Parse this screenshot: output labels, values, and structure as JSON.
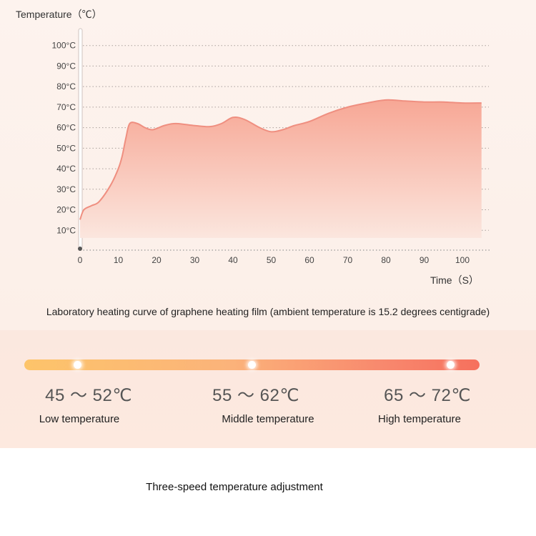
{
  "chart_data": {
    "type": "area",
    "ylabel": "Temperature（℃）",
    "xlabel": "Time（S）",
    "xlim": [
      0,
      105
    ],
    "ylim": [
      0,
      100
    ],
    "x_ticks": [
      0,
      10,
      20,
      30,
      40,
      50,
      60,
      70,
      80,
      90,
      100
    ],
    "y_ticks": [
      "10°C",
      "20°C",
      "30°C",
      "40°C",
      "50°C",
      "60°C",
      "70°C",
      "80°C",
      "90°C",
      "100°C"
    ],
    "y_tick_values": [
      10,
      20,
      30,
      40,
      50,
      60,
      70,
      80,
      90,
      100
    ],
    "grid": "horizontal dotted",
    "series": [
      {
        "x": [
          0,
          1,
          3,
          5,
          8,
          10,
          11,
          12,
          13,
          15,
          17,
          19,
          22,
          25,
          30,
          34,
          37,
          40,
          43,
          47,
          50,
          53,
          56,
          60,
          65,
          70,
          75,
          80,
          85,
          90,
          95,
          100,
          105
        ],
        "y": [
          15.2,
          20,
          22,
          24,
          32,
          40,
          46,
          55,
          62,
          62,
          60,
          59,
          61,
          62,
          61,
          60.5,
          62,
          65,
          64,
          60,
          58,
          59,
          61,
          63,
          67,
          70,
          72,
          73.5,
          73,
          72.5,
          72.5,
          72,
          72
        ]
      }
    ],
    "colors": {
      "line": "#ef8f80",
      "fill_top": "#f7a795",
      "fill_bottom": "#fbe3da"
    }
  },
  "caption": "Laboratory heating curve of graphene heating film (ambient temperature is 15.2 degrees centigrade)",
  "speeds": [
    {
      "range": "45 ～ 52℃",
      "label": "Low temperature"
    },
    {
      "range": "55 ～ 62℃",
      "label": "Middle temperature"
    },
    {
      "range": "65 ～ 72℃",
      "label": "High temperature"
    }
  ],
  "footer": "Three-speed temperature adjustment",
  "colors": {
    "bar_start": "#fdc46a",
    "bar_end": "#f6705d"
  }
}
